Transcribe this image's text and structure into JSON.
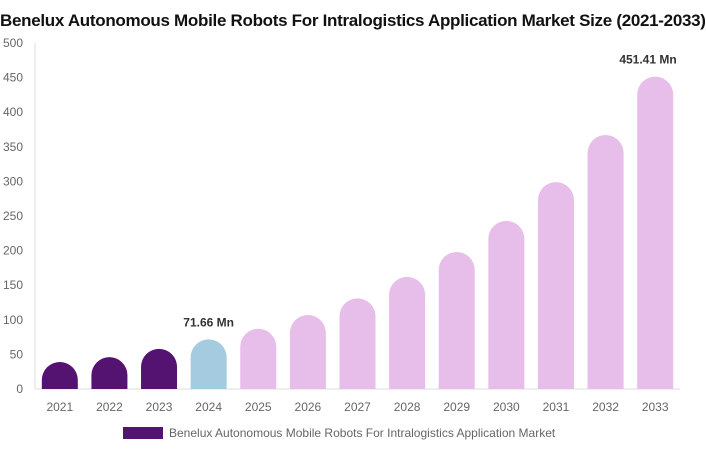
{
  "chart_data": {
    "type": "bar",
    "title": "Benelux Autonomous Mobile Robots For Intralogistics Application Market Size (2021-2033)",
    "categories": [
      "2021",
      "2022",
      "2023",
      "2024",
      "2025",
      "2026",
      "2027",
      "2028",
      "2029",
      "2030",
      "2031",
      "2032",
      "2033"
    ],
    "series": [
      {
        "name": "Benelux Autonomous Mobile Robots For Intralogistics Application Market",
        "values": [
          39,
          46,
          58,
          71.66,
          87,
          107,
          131,
          162,
          198,
          243,
          299,
          367,
          451.41
        ]
      }
    ],
    "ylim": [
      0,
      500
    ],
    "yticks": [
      0,
      50,
      100,
      150,
      200,
      250,
      300,
      350,
      400,
      450,
      500
    ],
    "data_labels": [
      {
        "index": 3,
        "text": "71.66 Mn"
      },
      {
        "index": 12,
        "text": "451.41 Mn"
      }
    ],
    "colors": {
      "historical": "#541271",
      "base_year": "#a4cbe0",
      "forecast": "#e7bde9"
    },
    "grid": false,
    "legend": "bottom"
  }
}
